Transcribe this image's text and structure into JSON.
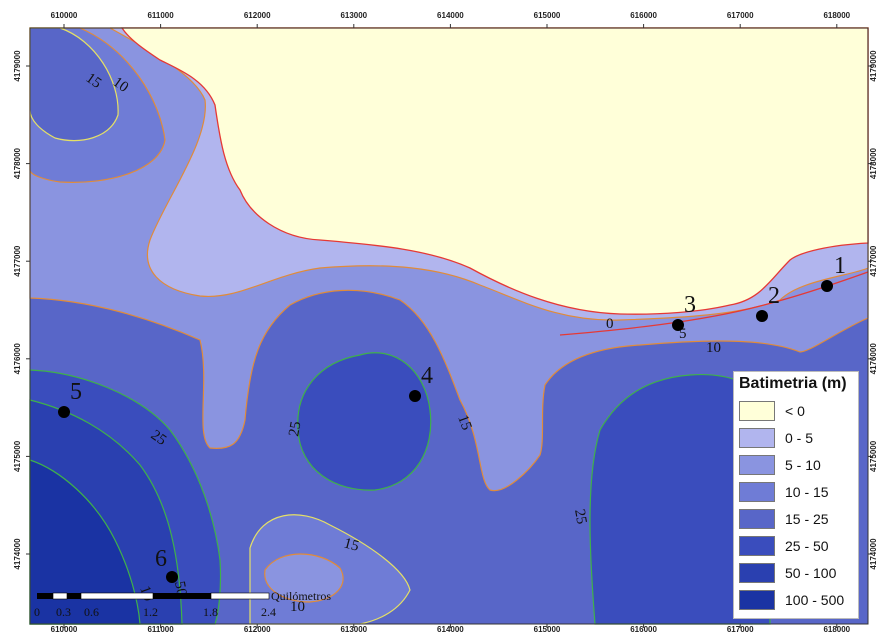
{
  "map": {
    "x_ticks": [
      "610000",
      "611000",
      "612000",
      "613000",
      "614000",
      "615000",
      "616000",
      "617000",
      "618000"
    ],
    "y_ticks": [
      "4179000",
      "4178000",
      "4177000",
      "4176000",
      "4175000",
      "4174000"
    ]
  },
  "legend": {
    "title": "Batimetria (m)",
    "classes": [
      {
        "label": "< 0",
        "color": "#FFFFD9"
      },
      {
        "label": "0 - 5",
        "color": "#B1B5EE"
      },
      {
        "label": "5 - 10",
        "color": "#8A94E0"
      },
      {
        "label": "10 - 15",
        "color": "#6F7CD6"
      },
      {
        "label": "15 - 25",
        "color": "#5866C8"
      },
      {
        "label": "25 - 50",
        "color": "#3A4DBD"
      },
      {
        "label": "50 - 100",
        "color": "#2A40B0"
      },
      {
        "label": "100 - 500",
        "color": "#1A33A3"
      }
    ]
  },
  "contour_labels": [
    "15",
    "10",
    "0",
    "5",
    "10",
    "25",
    "15",
    "25",
    "25",
    "15",
    "10",
    "50",
    "10"
  ],
  "points": [
    "1",
    "2",
    "3",
    "4",
    "5",
    "6"
  ],
  "scale_bar": {
    "ticks": [
      "0",
      "0.3",
      "0.6",
      "1.2",
      "1.8",
      "2.4"
    ],
    "unit": "Quilómetros"
  }
}
